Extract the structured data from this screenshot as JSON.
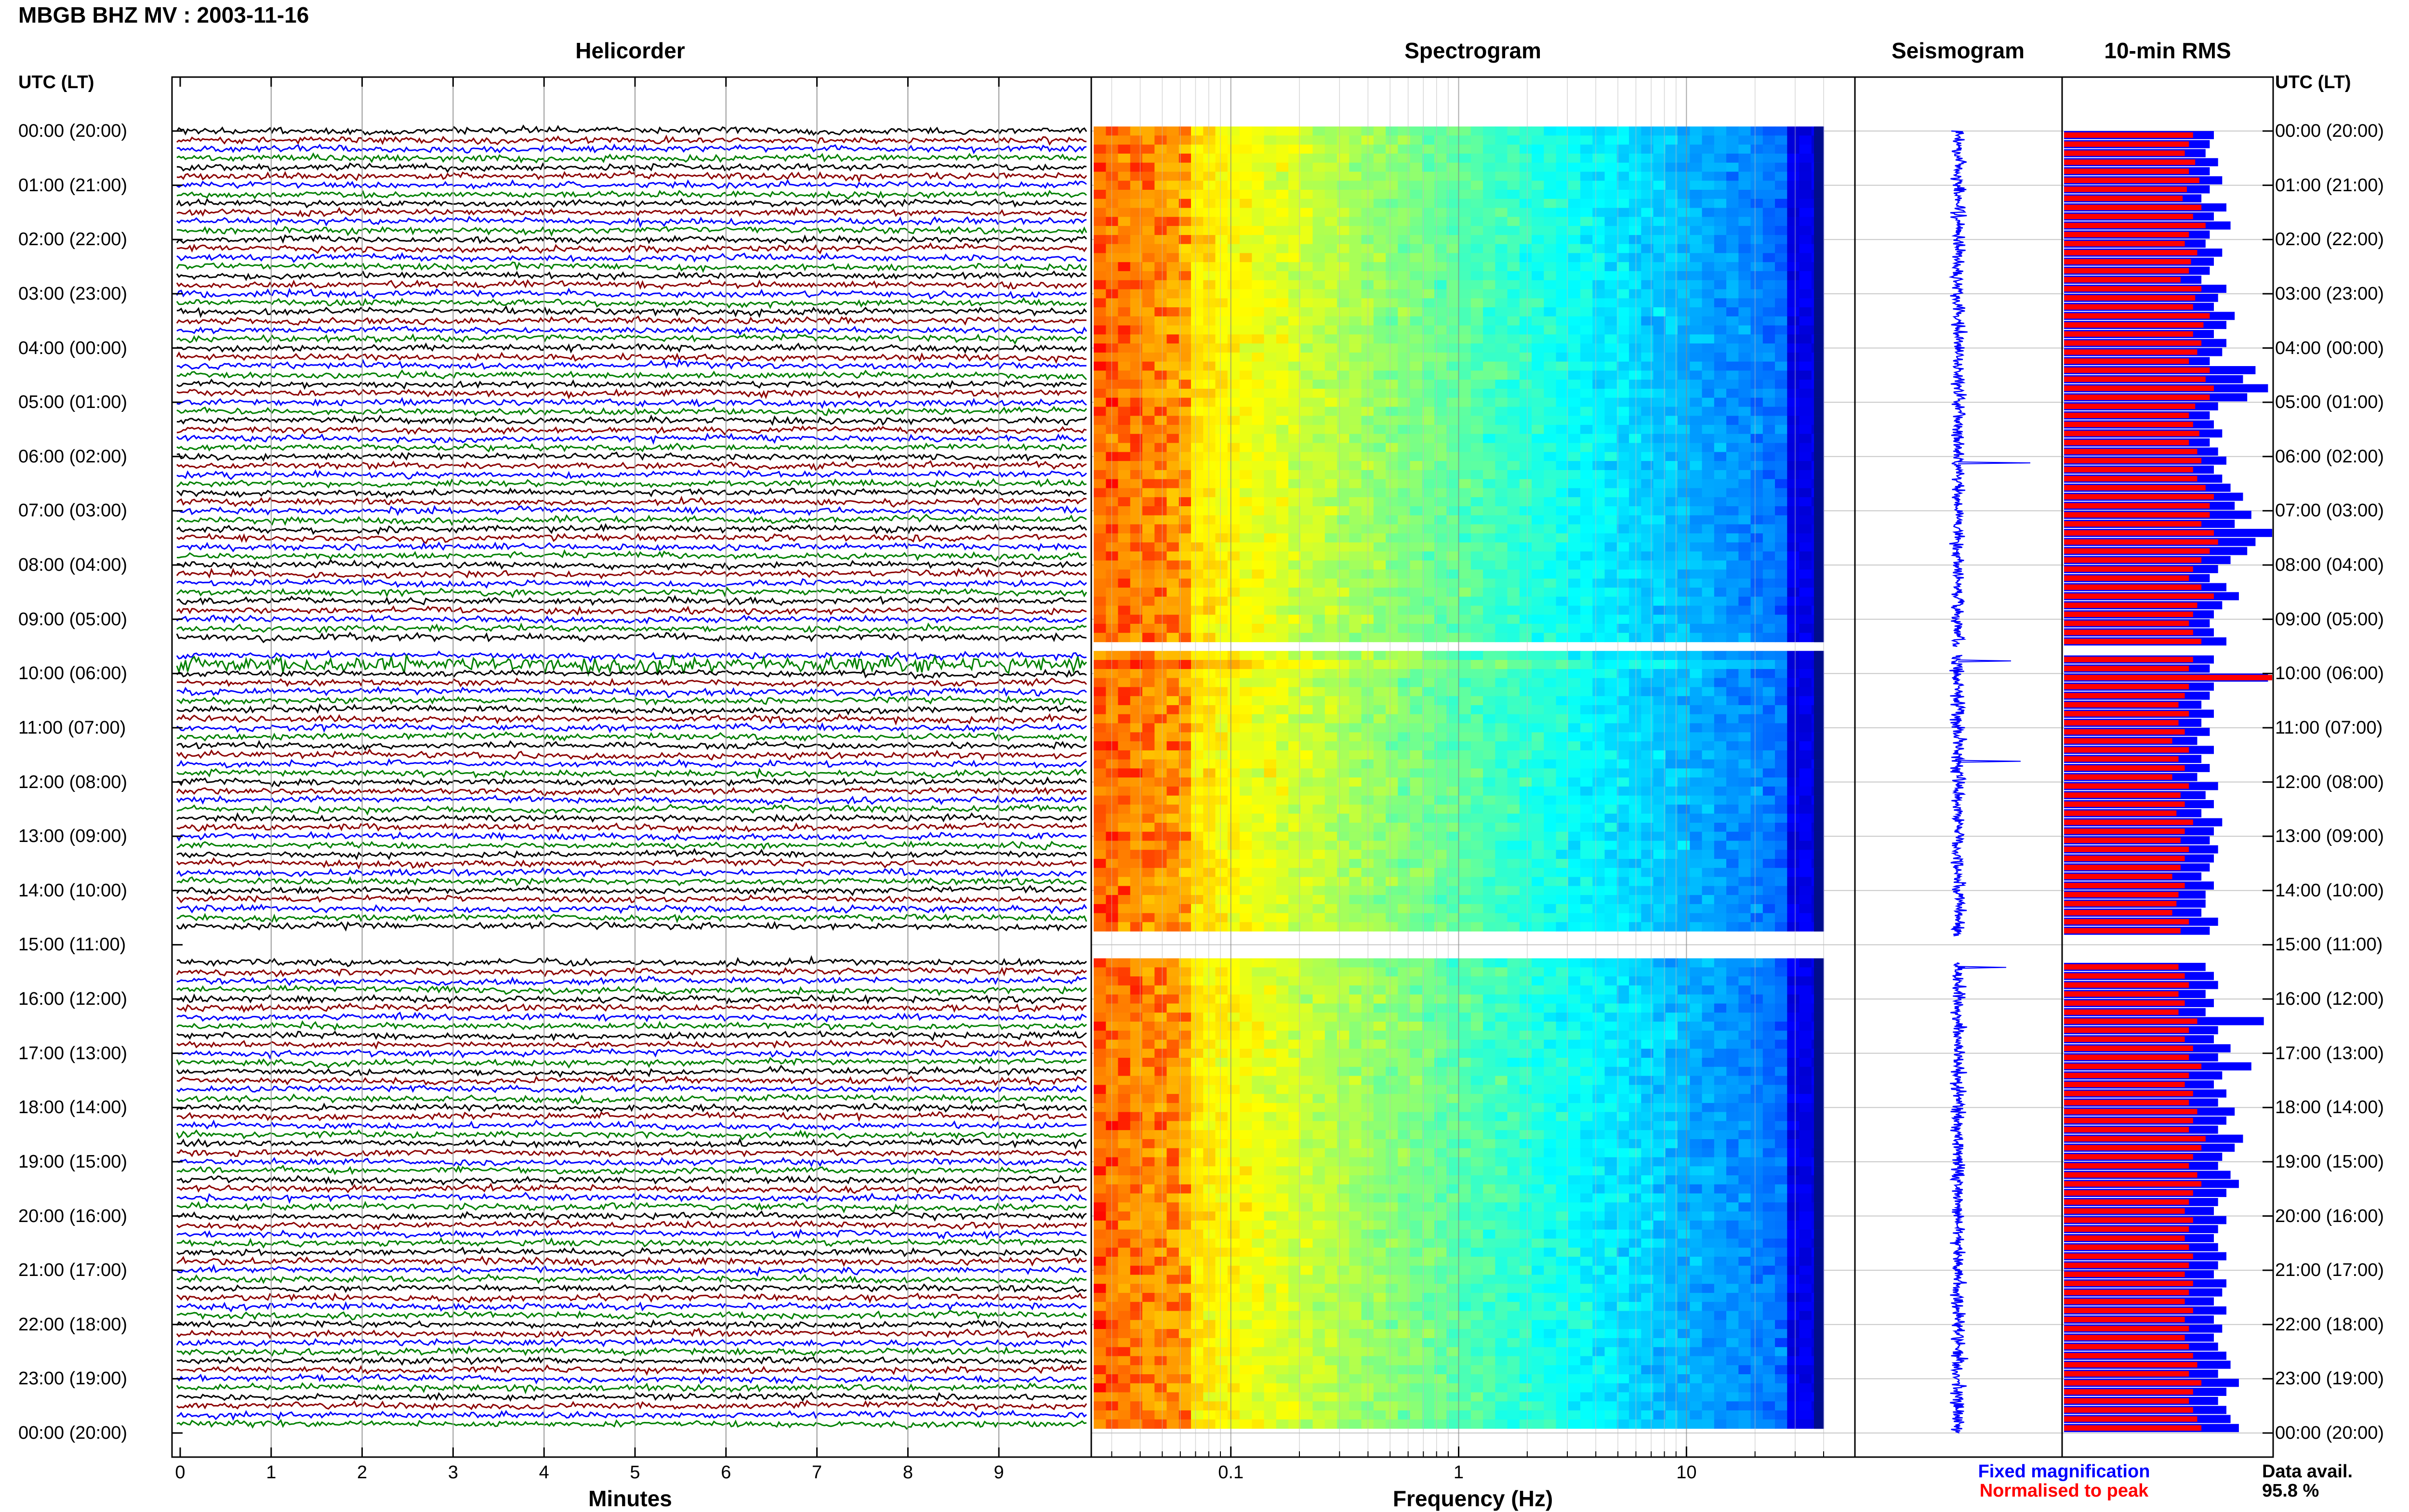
{
  "title": "MBGB BHZ MV : 2003-11-16",
  "panels": {
    "helicorder": "Helicorder",
    "spectrogram": "Spectrogram",
    "seismogram": "Seismogram",
    "rms": "10-min RMS"
  },
  "utc_label": "UTC (LT)",
  "hour_labels": [
    "00:00 (20:00)",
    "01:00 (21:00)",
    "02:00 (22:00)",
    "03:00 (23:00)",
    "04:00 (00:00)",
    "05:00 (01:00)",
    "06:00 (02:00)",
    "07:00 (03:00)",
    "08:00 (04:00)",
    "09:00 (05:00)",
    "10:00 (06:00)",
    "11:00 (07:00)",
    "12:00 (08:00)",
    "13:00 (09:00)",
    "14:00 (10:00)",
    "15:00 (11:00)",
    "16:00 (12:00)",
    "17:00 (13:00)",
    "18:00 (14:00)",
    "19:00 (15:00)",
    "20:00 (16:00)",
    "21:00 (17:00)",
    "22:00 (18:00)",
    "23:00 (19:00)",
    "00:00 (20:00)"
  ],
  "legend": {
    "fixed": "Fixed magnification",
    "normalised": "Normalised to peak",
    "fixed_color": "#0000ff",
    "normalised_color": "#ff0000"
  },
  "data_availability": {
    "label": "Data avail.",
    "value": "95.8 %"
  },
  "chart_data": {
    "type": "heatmap",
    "station": "MBGB BHZ MV",
    "date": "2003-11-16",
    "helicorder": {
      "xlabel": "Minutes",
      "xticks": [
        "0",
        "1",
        "2",
        "3",
        "4",
        "5",
        "6",
        "7",
        "8",
        "9"
      ],
      "xlim": [
        0,
        10
      ],
      "trace_colors": [
        "#000000",
        "#8b0000",
        "#0000ff",
        "#008000"
      ],
      "rows_per_hour": 6,
      "hours": 24
    },
    "spectrogram": {
      "xlabel": "Frequency (Hz)",
      "xscale": "log",
      "xlim": [
        0.025,
        40
      ],
      "xticks": [
        "0.1",
        "1",
        "10"
      ]
    },
    "data_gaps_utc": [
      [
        "09:30",
        "09:40"
      ],
      [
        "14:50",
        "15:20"
      ]
    ],
    "rms_normalised": [
      0.62,
      0.6,
      0.58,
      0.63,
      0.6,
      0.65,
      0.59,
      0.57,
      0.66,
      0.62,
      0.68,
      0.6,
      0.58,
      0.64,
      0.61,
      0.6,
      0.56,
      0.66,
      0.63,
      0.62,
      0.7,
      0.67,
      0.62,
      0.66,
      0.64,
      0.6,
      0.7,
      0.68,
      0.72,
      0.7,
      0.63,
      0.6,
      0.62,
      0.65,
      0.6,
      0.64,
      0.66,
      0.62,
      0.64,
      0.68,
      0.72,
      0.7,
      0.7,
      0.66,
      0.72,
      0.74,
      0.7,
      0.66,
      0.62,
      0.6,
      0.66,
      0.72,
      0.64,
      0.62,
      0.6,
      0.62,
      0.66,
      0.62,
      0.6,
      1.0,
      0.6,
      0.58,
      0.55,
      0.6,
      0.55,
      0.58,
      0.52,
      0.6,
      0.55,
      0.58,
      0.52,
      0.6,
      0.56,
      0.58,
      0.54,
      0.62,
      0.58,
      0.56,
      0.6,
      0.58,
      0.56,
      0.52,
      0.58,
      0.55,
      0.54,
      0.52,
      0.6,
      0.56,
      0.55,
      0.58,
      0.6,
      0.55,
      0.58,
      0.55,
      0.64,
      0.6,
      0.58,
      0.62,
      0.6,
      0.66,
      0.6,
      0.58,
      0.62,
      0.6,
      0.64,
      0.62,
      0.6,
      0.68,
      0.66,
      0.62,
      0.6,
      0.64,
      0.66,
      0.62,
      0.6,
      0.58,
      0.62,
      0.6,
      0.58,
      0.6,
      0.62,
      0.6,
      0.58,
      0.62,
      0.6,
      0.58,
      0.62,
      0.58,
      0.6,
      0.58,
      0.6,
      0.62,
      0.64,
      0.6,
      0.66,
      0.62,
      0.6,
      0.62,
      0.64,
      0.66,
      0.62,
      0.6
    ],
    "rms_fixed": [
      0.72,
      0.7,
      0.68,
      0.74,
      0.7,
      0.76,
      0.7,
      0.66,
      0.78,
      0.72,
      0.8,
      0.7,
      0.68,
      0.76,
      0.72,
      0.7,
      0.66,
      0.78,
      0.74,
      0.72,
      0.82,
      0.78,
      0.72,
      0.78,
      0.76,
      0.7,
      0.92,
      0.86,
      0.98,
      0.88,
      0.74,
      0.7,
      0.72,
      0.76,
      0.7,
      0.74,
      0.78,
      0.72,
      0.76,
      0.8,
      0.86,
      0.82,
      0.9,
      0.82,
      1.0,
      0.92,
      0.88,
      0.8,
      0.74,
      0.7,
      0.78,
      0.84,
      0.76,
      0.72,
      0.7,
      0.72,
      0.78,
      0.72,
      0.7,
      0.98,
      0.72,
      0.7,
      0.66,
      0.72,
      0.66,
      0.7,
      0.64,
      0.72,
      0.66,
      0.7,
      0.64,
      0.74,
      0.68,
      0.72,
      0.66,
      0.76,
      0.72,
      0.7,
      0.74,
      0.72,
      0.7,
      0.66,
      0.72,
      0.68,
      0.68,
      0.66,
      0.74,
      0.7,
      0.68,
      0.72,
      0.74,
      0.68,
      0.72,
      0.68,
      0.96,
      0.74,
      0.72,
      0.8,
      0.74,
      0.9,
      0.76,
      0.72,
      0.78,
      0.74,
      0.82,
      0.78,
      0.74,
      0.86,
      0.82,
      0.76,
      0.74,
      0.8,
      0.84,
      0.78,
      0.74,
      0.72,
      0.78,
      0.74,
      0.72,
      0.74,
      0.78,
      0.74,
      0.72,
      0.78,
      0.76,
      0.72,
      0.78,
      0.72,
      0.76,
      0.72,
      0.74,
      0.78,
      0.8,
      0.74,
      0.84,
      0.78,
      0.74,
      0.78,
      0.8,
      0.84,
      0.78,
      0.76
    ]
  }
}
